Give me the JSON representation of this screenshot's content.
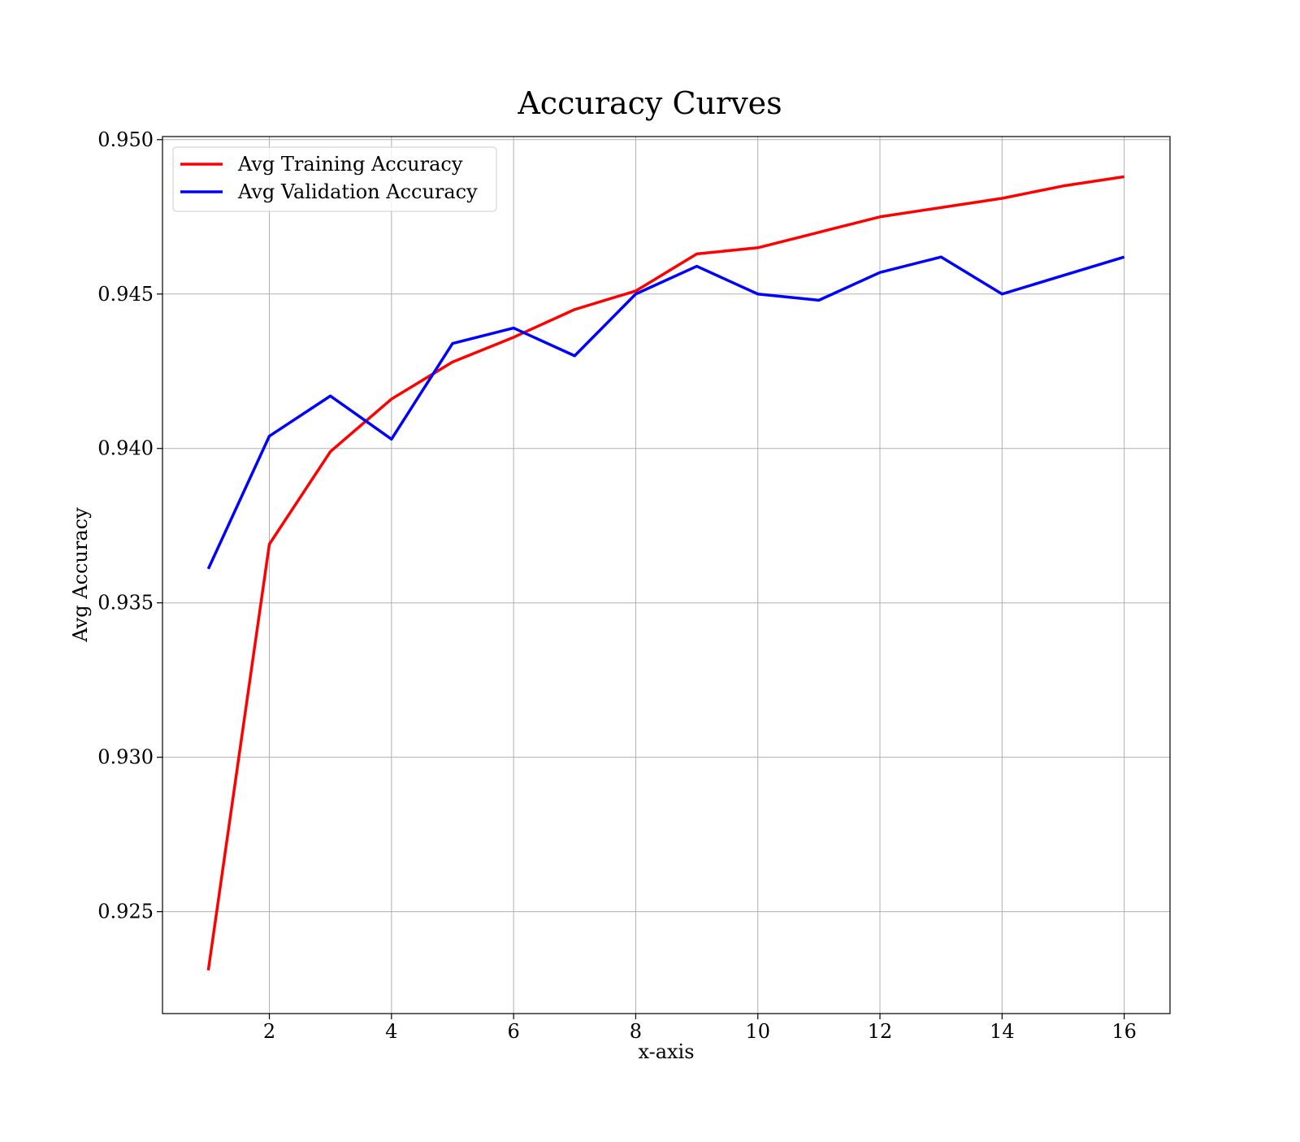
{
  "chart_data": {
    "type": "line",
    "title": "Accuracy Curves",
    "xlabel": "x-axis",
    "ylabel": "Avg Accuracy",
    "xlim": [
      0.25,
      16.75
    ],
    "ylim": [
      0.9217,
      0.9501
    ],
    "x_ticks": [
      2,
      4,
      6,
      8,
      10,
      12,
      14,
      16
    ],
    "x_tick_labels": [
      "2",
      "4",
      "6",
      "8",
      "10",
      "12",
      "14",
      "16"
    ],
    "y_ticks": [
      0.925,
      0.93,
      0.935,
      0.94,
      0.945,
      0.95
    ],
    "y_tick_labels": [
      "0.925",
      "0.930",
      "0.935",
      "0.940",
      "0.945",
      "0.950"
    ],
    "grid": true,
    "legend_position": "top-left",
    "x": [
      1,
      2,
      3,
      4,
      5,
      6,
      7,
      8,
      9,
      10,
      11,
      12,
      13,
      14,
      15,
      16
    ],
    "series": [
      {
        "name": "Avg Training Accuracy",
        "color": "#ff0000",
        "values": [
          0.9231,
          0.9369,
          0.9399,
          0.9416,
          0.9428,
          0.9436,
          0.9445,
          0.9451,
          0.9463,
          0.9465,
          0.947,
          0.9475,
          0.9478,
          0.9481,
          0.9485,
          0.9488
        ]
      },
      {
        "name": "Avg Validation Accuracy",
        "color": "#0000ff",
        "values": [
          0.9361,
          0.9404,
          0.9417,
          0.9403,
          0.9434,
          0.9439,
          0.943,
          0.945,
          0.9459,
          0.945,
          0.9448,
          0.9457,
          0.9462,
          0.945,
          0.9456,
          0.9462
        ]
      }
    ]
  }
}
